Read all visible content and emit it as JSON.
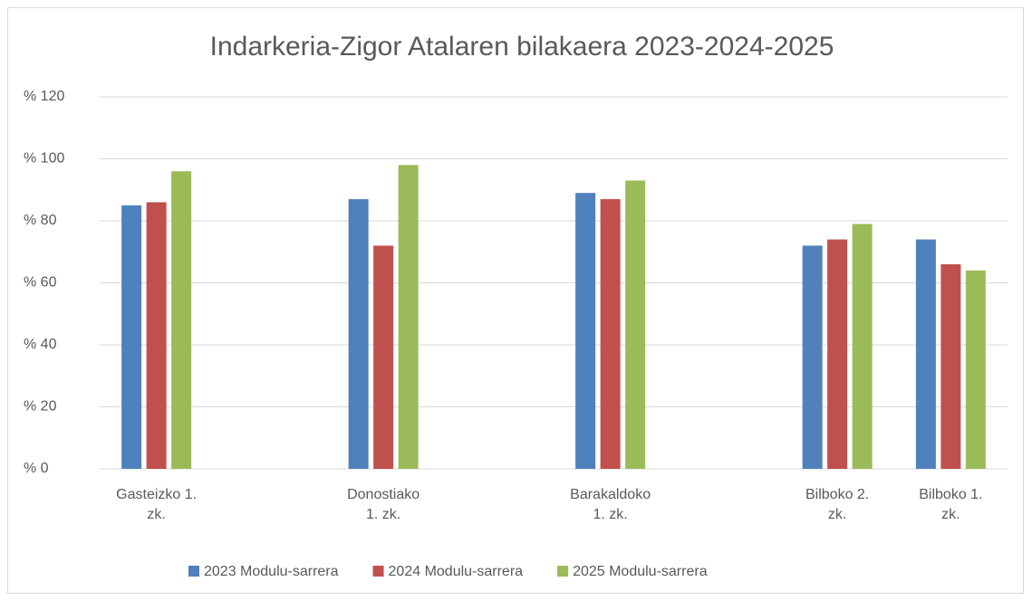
{
  "chart_data": {
    "type": "bar",
    "title": "Indarkeria-Zigor Atalaren bilakaera 2023-2024-2025",
    "categories": [
      "Gasteizko 1.\nzk.",
      null,
      "Donostiako\n1. zk.",
      null,
      "Barakaldoko\n1. zk.",
      null,
      "Bilboko 2.\nzk.",
      "Bilboko 1.\nzk."
    ],
    "series": [
      {
        "name": "2023 Modulu-sarrera",
        "color": "#4f81bd",
        "values": [
          85,
          null,
          87,
          null,
          89,
          null,
          72,
          74
        ]
      },
      {
        "name": "2024 Modulu-sarrera",
        "color": "#c0504d",
        "values": [
          86,
          null,
          72,
          null,
          87,
          null,
          74,
          66
        ]
      },
      {
        "name": "2025 Modulu-sarrera",
        "color": "#9bbb59",
        "values": [
          96,
          null,
          98,
          null,
          93,
          null,
          79,
          64
        ]
      }
    ],
    "ylim": [
      0,
      120
    ],
    "yticks": [
      {
        "value": 0,
        "label": "% 0"
      },
      {
        "value": 20,
        "label": "% 20"
      },
      {
        "value": 40,
        "label": "% 40"
      },
      {
        "value": 60,
        "label": "% 60"
      },
      {
        "value": 80,
        "label": "% 80"
      },
      {
        "value": 100,
        "label": "% 100"
      },
      {
        "value": 120,
        "label": "% 120"
      }
    ],
    "grid": true,
    "legend": "bottom"
  }
}
